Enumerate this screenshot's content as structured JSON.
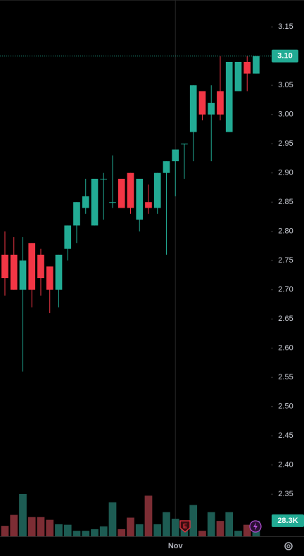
{
  "chart_data": {
    "type": "candlestick",
    "categories": [
      null,
      null,
      null,
      null,
      null,
      null,
      null,
      null,
      null,
      null,
      null,
      null,
      null,
      null,
      null,
      null,
      null,
      null,
      null,
      "Nov",
      null,
      null,
      null,
      null,
      null,
      null,
      null,
      null,
      null
    ],
    "series": [
      {
        "name": "open",
        "values": [
          2.76,
          2.76,
          2.7,
          2.78,
          2.76,
          2.74,
          2.7,
          2.77,
          2.81,
          2.84,
          2.81,
          2.89,
          2.85,
          2.89,
          2.9,
          2.82,
          2.85,
          2.84,
          2.9,
          2.92,
          2.95,
          2.97,
          3.04,
          3.0,
          3.04,
          2.97,
          3.04,
          3.09,
          3.07
        ]
      },
      {
        "name": "high",
        "values": [
          2.8,
          2.79,
          2.79,
          2.78,
          2.77,
          2.74,
          2.76,
          2.81,
          2.85,
          2.89,
          2.89,
          2.9,
          2.93,
          2.89,
          2.9,
          2.89,
          2.88,
          2.9,
          2.92,
          2.94,
          2.95,
          3.05,
          3.04,
          3.05,
          3.1,
          3.09,
          3.09,
          3.1,
          3.1
        ]
      },
      {
        "name": "low",
        "values": [
          2.69,
          2.7,
          2.56,
          2.67,
          2.69,
          2.66,
          2.67,
          2.75,
          2.78,
          2.83,
          2.81,
          2.82,
          2.84,
          2.84,
          2.83,
          2.8,
          2.83,
          2.83,
          2.76,
          2.86,
          2.89,
          2.92,
          2.99,
          2.92,
          2.99,
          2.97,
          3.04,
          3.04,
          3.07
        ]
      },
      {
        "name": "close",
        "values": [
          2.72,
          2.7,
          2.75,
          2.7,
          2.72,
          2.7,
          2.76,
          2.81,
          2.85,
          2.86,
          2.89,
          2.89,
          2.85,
          2.84,
          2.84,
          2.89,
          2.84,
          2.9,
          2.92,
          2.94,
          2.95,
          3.05,
          3.0,
          3.02,
          3.0,
          3.09,
          3.09,
          3.07,
          3.1
        ]
      },
      {
        "name": "volume",
        "values": [
          19,
          39,
          77,
          35,
          35,
          30,
          22,
          21,
          10,
          10,
          13,
          18,
          62,
          13,
          34,
          22,
          74,
          22,
          44,
          32,
          23,
          57,
          10,
          44,
          28,
          44,
          10,
          21,
          28.3
        ]
      }
    ],
    "up_color": "#22ab94",
    "down_color": "#f23645",
    "up_volume_color": "#1d5c53",
    "down_volume_color": "#7c2d34",
    "ylim": [
      2.278,
      3.196
    ],
    "yticks": [
      3.15,
      {
        "value": 3.1,
        "label": "3.10"
      },
      3.05,
      {
        "value": 3.0,
        "label": "3.00"
      },
      2.95,
      {
        "value": 2.9,
        "label": "2.90"
      },
      2.85,
      {
        "value": 2.8,
        "label": "2.80"
      },
      2.75,
      {
        "value": 2.7,
        "label": "2.70"
      },
      2.65,
      {
        "value": 2.6,
        "label": "2.60"
      },
      2.55,
      {
        "value": 2.5,
        "label": "2.50"
      },
      2.45,
      {
        "value": 2.4,
        "label": "2.40"
      },
      2.35
    ],
    "current_price": {
      "value": 3.1,
      "label": "3.10"
    },
    "current_volume": {
      "value": 28.3,
      "label": "28.3K"
    },
    "grid": false
  }
}
